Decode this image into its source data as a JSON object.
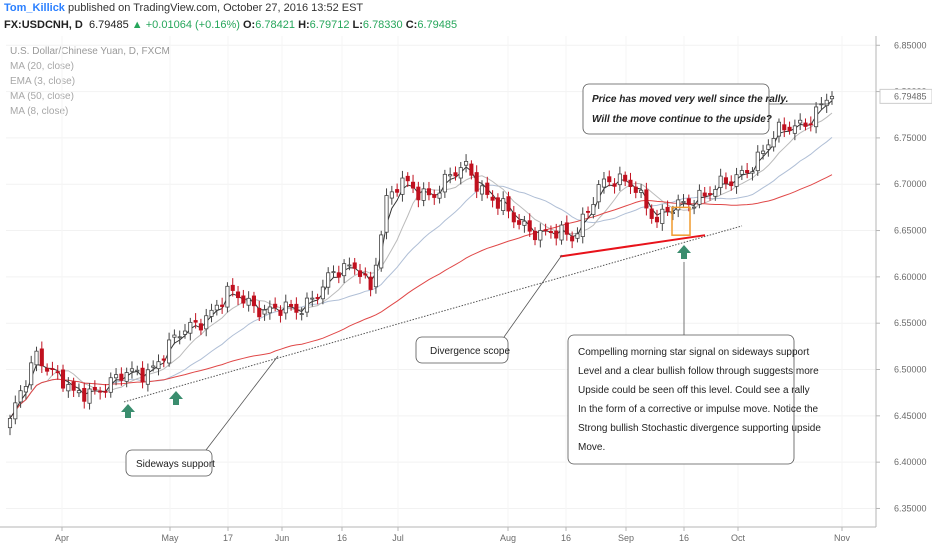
{
  "header": {
    "user": "Tom_Killick",
    "published": "published on TradingView.com, October 27, 2016 13:52 EST",
    "symbol": "FX:USDCNH, D",
    "last": "6.79485",
    "change": "+0.01064 (+0.16%)",
    "o_label": "O:",
    "o": "6.78421",
    "h_label": "H:",
    "h": "6.79712",
    "l_label": "L:",
    "l": "6.78330",
    "c_label": "C:",
    "c": "6.79485"
  },
  "legend": {
    "title": "U.S. Dollar/Chinese Yuan, D, FXCM",
    "items": [
      "MA (20, close)",
      "EMA (3, close)",
      "MA (50, close)",
      "MA (8, close)"
    ]
  },
  "chart_data": {
    "type": "candlestick",
    "y_axis": {
      "min": 6.33,
      "max": 6.86,
      "ticks": [
        "6.35000",
        "6.40000",
        "6.45000",
        "6.50000",
        "6.55000",
        "6.60000",
        "6.65000",
        "6.70000",
        "6.75000",
        "6.80000",
        "6.85000"
      ],
      "last_price_label": "6.79485"
    },
    "x_axis": {
      "labels": [
        "Apr",
        "May",
        "17",
        "Jun",
        "16",
        "Jul",
        "Aug",
        "16",
        "Sep",
        "16",
        "Oct",
        "Nov"
      ]
    },
    "anchors": [
      {
        "d": 0,
        "p": 6.44
      },
      {
        "d": 5,
        "p": 6.52
      },
      {
        "d": 12,
        "p": 6.47
      },
      {
        "d": 16,
        "p": 6.48
      },
      {
        "d": 26,
        "p": 6.5
      },
      {
        "d": 31,
        "p": 6.53
      },
      {
        "d": 41,
        "p": 6.58
      },
      {
        "d": 46,
        "p": 6.57
      },
      {
        "d": 54,
        "p": 6.56
      },
      {
        "d": 60,
        "p": 6.6
      },
      {
        "d": 66,
        "p": 6.61
      },
      {
        "d": 68,
        "p": 6.59
      },
      {
        "d": 71,
        "p": 6.68
      },
      {
        "d": 74,
        "p": 6.7
      },
      {
        "d": 80,
        "p": 6.69
      },
      {
        "d": 86,
        "p": 6.72
      },
      {
        "d": 90,
        "p": 6.69
      },
      {
        "d": 95,
        "p": 6.66
      },
      {
        "d": 100,
        "p": 6.65
      },
      {
        "d": 106,
        "p": 6.64
      },
      {
        "d": 111,
        "p": 6.7
      },
      {
        "d": 118,
        "p": 6.7
      },
      {
        "d": 122,
        "p": 6.66
      },
      {
        "d": 130,
        "p": 6.69
      },
      {
        "d": 136,
        "p": 6.7
      },
      {
        "d": 144,
        "p": 6.75
      },
      {
        "d": 150,
        "p": 6.77
      },
      {
        "d": 155,
        "p": 6.795
      }
    ],
    "annotations": {
      "price_moved": [
        "Price has moved very well since the rally.",
        "Will the move continue to the upside?"
      ],
      "divergence": "Divergence scope",
      "sideways": "Sideways support",
      "signal": [
        "Compelling morning star signal on sideways support",
        "Level and a clear bullish follow through suggests more",
        "Upside could be seen off this level. Could see a rally",
        "In the form of a corrective or impulse move. Notice the",
        "Strong bullish Stochastic divergence supporting upside",
        "Move."
      ]
    },
    "colors": {
      "up": "#ffffff",
      "down": "#c0111f",
      "ma20": "#b0bfd6",
      "ema3": "#333333",
      "ma50": "#e04848",
      "ma8": "#bbbbbb",
      "support": "#e8121a",
      "arrow": "#3a8d6e",
      "box": "#f09a2d"
    }
  }
}
